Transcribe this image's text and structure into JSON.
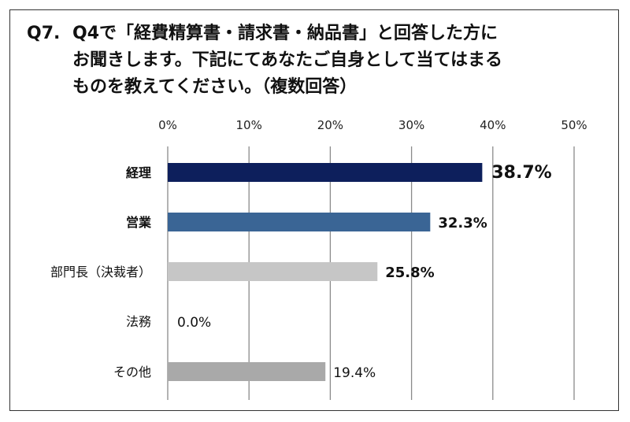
{
  "title": {
    "number": "Q7.",
    "line1": "Q4で「経費精算書・請求書・納品書」と回答した方に",
    "line2": "お聞きします。下記にてあなたご自身として当てはまる",
    "line3": "ものを教えてください。（複数回答）"
  },
  "chart_data": {
    "type": "bar",
    "orientation": "horizontal",
    "categories": [
      "経理",
      "営業",
      "部門長（決裁者）",
      "法務",
      "その他"
    ],
    "values": [
      38.7,
      32.3,
      25.8,
      0.0,
      19.4
    ],
    "value_labels": [
      "38.7%",
      "32.3%",
      "25.8%",
      "0.0%",
      "19.4%"
    ],
    "xlim": [
      0,
      50
    ],
    "x_ticks": [
      "0%",
      "10%",
      "20%",
      "30%",
      "40%",
      "50%"
    ],
    "grid": true,
    "colors": [
      "#0d1f5c",
      "#3a6595",
      "#c6c6c6",
      "#c6c6c6",
      "#a9a9a9"
    ]
  }
}
